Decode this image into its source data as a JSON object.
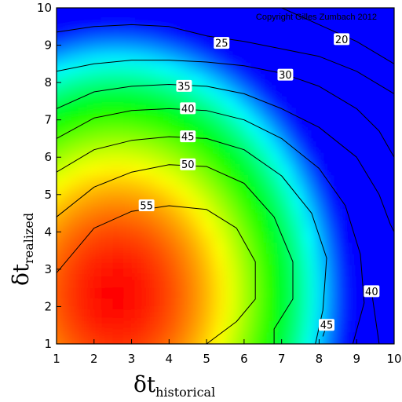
{
  "chart_data": {
    "type": "heatmap",
    "x": [
      1,
      2,
      3,
      4,
      5,
      6,
      7,
      8,
      9,
      10
    ],
    "y": [
      1,
      2,
      3,
      4,
      5,
      6,
      7,
      8,
      9,
      10
    ],
    "xlim": [
      1,
      10
    ],
    "ylim": [
      1,
      10
    ],
    "x_ticks": [
      "1",
      "2",
      "3",
      "4",
      "5",
      "6",
      "7",
      "8",
      "9",
      "10"
    ],
    "y_ticks": [
      "1",
      "2",
      "3",
      "4",
      "5",
      "6",
      "7",
      "8",
      "9",
      "10"
    ],
    "xlabel": {
      "main": "δt",
      "sub": "historical"
    },
    "ylabel": {
      "main": "δt",
      "sub": "realized"
    },
    "annotation": "Copyright Gilles Zumbach 2012",
    "colormap": [
      "#0000ff",
      "#00ffff",
      "#00ff00",
      "#ffff00",
      "#ff0000"
    ],
    "value_range": [
      15,
      60
    ],
    "contours": [
      {
        "level": 55,
        "label": "55",
        "label_at": [
          3.4,
          4.7
        ],
        "points": [
          [
            1,
            2.9
          ],
          [
            2,
            4.1
          ],
          [
            3,
            4.55
          ],
          [
            4,
            4.7
          ],
          [
            5,
            4.6
          ],
          [
            5.8,
            4.1
          ],
          [
            6.3,
            3.2
          ],
          [
            6.3,
            2.2
          ],
          [
            5.8,
            1.6
          ],
          [
            5,
            1
          ]
        ]
      },
      {
        "level": 50,
        "label": "50",
        "label_at": [
          4.5,
          5.8
        ],
        "points": [
          [
            1,
            4.4
          ],
          [
            2,
            5.2
          ],
          [
            3,
            5.6
          ],
          [
            4,
            5.8
          ],
          [
            5,
            5.75
          ],
          [
            6,
            5.3
          ],
          [
            6.8,
            4.4
          ],
          [
            7.3,
            3.2
          ],
          [
            7.3,
            2.2
          ],
          [
            6.8,
            1.4
          ],
          [
            6.8,
            1
          ]
        ]
      },
      {
        "level": 45,
        "label": "45",
        "label_at": [
          4.5,
          6.55
        ],
        "points": [
          [
            1,
            5.6
          ],
          [
            2,
            6.2
          ],
          [
            3,
            6.45
          ],
          [
            4,
            6.55
          ],
          [
            5,
            6.5
          ],
          [
            6,
            6.2
          ],
          [
            7,
            5.5
          ],
          [
            7.8,
            4.5
          ],
          [
            8.2,
            3.3
          ],
          [
            8.1,
            1.9
          ],
          [
            7.9,
            1
          ]
        ]
      },
      {
        "level": 40,
        "label": "40",
        "label_at": [
          4.5,
          7.3
        ],
        "points": [
          [
            1,
            6.5
          ],
          [
            2,
            7.05
          ],
          [
            3,
            7.25
          ],
          [
            4,
            7.3
          ],
          [
            5,
            7.25
          ],
          [
            6,
            7.0
          ],
          [
            7,
            6.5
          ],
          [
            8,
            5.7
          ],
          [
            8.7,
            4.7
          ],
          [
            9.1,
            3.4
          ],
          [
            9.2,
            2.1
          ],
          [
            8.9,
            1
          ]
        ]
      },
      {
        "level": 35,
        "label": "35",
        "label_at": [
          4.4,
          7.9
        ],
        "points": [
          [
            1,
            7.3
          ],
          [
            2,
            7.75
          ],
          [
            3,
            7.9
          ],
          [
            4,
            7.95
          ],
          [
            5,
            7.9
          ],
          [
            6,
            7.7
          ],
          [
            7,
            7.3
          ],
          [
            8,
            6.8
          ],
          [
            9,
            6.0
          ],
          [
            9.6,
            5.0
          ],
          [
            9.9,
            4.2
          ],
          [
            10,
            4.0
          ]
        ]
      },
      {
        "level": 30,
        "label": "30",
        "label_at": [
          7.1,
          8.2
        ],
        "points": [
          [
            1,
            8.3
          ],
          [
            2,
            8.5
          ],
          [
            3,
            8.6
          ],
          [
            4,
            8.6
          ],
          [
            5,
            8.55
          ],
          [
            6,
            8.45
          ],
          [
            7,
            8.25
          ],
          [
            8,
            7.9
          ],
          [
            9,
            7.3
          ],
          [
            9.6,
            6.7
          ],
          [
            10,
            6.0
          ]
        ]
      },
      {
        "level": 25,
        "label": "25",
        "label_at": [
          5.4,
          9.05
        ],
        "points": [
          [
            1,
            9.35
          ],
          [
            2,
            9.5
          ],
          [
            3,
            9.55
          ],
          [
            4,
            9.5
          ],
          [
            5,
            9.25
          ],
          [
            6,
            9.1
          ],
          [
            7,
            8.9
          ],
          [
            8,
            8.7
          ],
          [
            9,
            8.3
          ],
          [
            10,
            7.7
          ]
        ]
      },
      {
        "level": 20,
        "label": "20",
        "label_at": [
          8.6,
          9.15
        ],
        "points": [
          [
            7,
            10
          ],
          [
            8,
            9.55
          ],
          [
            9,
            9.1
          ],
          [
            10,
            8.5
          ]
        ]
      },
      {
        "level": 40,
        "label": "40",
        "label_at": [
          9.4,
          2.4
        ],
        "points": [
          [
            9.6,
            1
          ],
          [
            9.4,
            2.4
          ]
        ]
      },
      {
        "level": 45,
        "label": "45",
        "label_at": [
          8.2,
          1.5
        ],
        "points": [
          [
            8.1,
            1.2
          ],
          [
            8.2,
            1.5
          ]
        ]
      }
    ],
    "grid": false,
    "legend": "none"
  }
}
